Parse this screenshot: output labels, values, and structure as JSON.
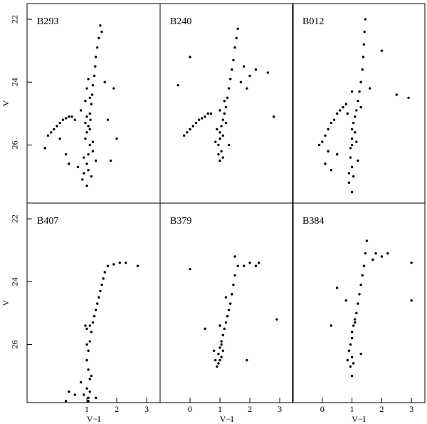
{
  "chart_data": [
    {
      "type": "scatter",
      "title": "B293",
      "color": "#000000",
      "xlim": [
        -1,
        3.45
      ],
      "ylim": [
        27.85,
        21.5
      ],
      "yticks": [
        22,
        24,
        26
      ],
      "ylabel": "V",
      "x": [
        1.45,
        1.5,
        1.4,
        1.35,
        1.3,
        1.28,
        1.25,
        1.2,
        1.18,
        1.15,
        1.1,
        1.12,
        1.05,
        1.0,
        0.95,
        1.1,
        1.2,
        0.9,
        1.0,
        1.05,
        1.15,
        0.85,
        1.0,
        1.1,
        0.95,
        1.3,
        0.8,
        1.0,
        1.2,
        1.05,
        0.9,
        1.1,
        1.0,
        -0.3,
        -0.2,
        -0.1,
        0.0,
        0.1,
        0.2,
        0.3,
        0.4,
        0.5,
        0.6,
        -0.4,
        0.1,
        0.3,
        1.6,
        1.9,
        2.0,
        1.8,
        0.7,
        0.4,
        1.7,
        1.05,
        0.95
      ],
      "values": [
        22.2,
        22.4,
        22.6,
        22.9,
        23.2,
        23.5,
        23.8,
        24.1,
        24.4,
        24.7,
        25.0,
        25.2,
        25.4,
        25.6,
        25.8,
        26.0,
        26.2,
        26.4,
        26.6,
        26.8,
        27.0,
        27.1,
        27.3,
        25.5,
        25.3,
        26.5,
        24.9,
        24.2,
        25.9,
        26.3,
        26.9,
        24.5,
        25.1,
        25.7,
        25.6,
        25.5,
        25.4,
        25.3,
        25.2,
        25.15,
        25.1,
        25.1,
        25.2,
        26.1,
        25.8,
        26.3,
        24.0,
        24.2,
        25.8,
        26.5,
        26.7,
        26.6,
        25.2,
        23.9,
        24.6
      ]
    },
    {
      "type": "scatter",
      "title": "B240",
      "color": "#000000",
      "xlim": [
        -1,
        3.45
      ],
      "ylim": [
        27.85,
        21.5
      ],
      "x": [
        1.6,
        1.55,
        1.5,
        1.45,
        1.4,
        1.35,
        1.3,
        1.25,
        1.2,
        1.15,
        1.1,
        1.05,
        1.0,
        1.0,
        0.95,
        1.05,
        1.1,
        0.9,
        1.0,
        1.15,
        0.85,
        1.0,
        1.2,
        -0.2,
        -0.1,
        0.0,
        0.1,
        0.2,
        0.3,
        0.4,
        0.5,
        0.6,
        0.7,
        1.8,
        2.0,
        2.2,
        2.6,
        1.9,
        0.0,
        -0.4,
        2.8,
        1.7,
        1.3,
        0.95,
        1.1
      ],
      "values": [
        22.3,
        22.6,
        22.9,
        23.3,
        23.6,
        23.9,
        24.2,
        24.5,
        24.8,
        25.0,
        25.2,
        25.4,
        25.6,
        25.8,
        26.0,
        26.2,
        26.4,
        25.5,
        26.5,
        24.6,
        25.9,
        24.9,
        25.3,
        25.7,
        25.6,
        25.5,
        25.4,
        25.3,
        25.2,
        25.15,
        25.1,
        25.0,
        25.0,
        23.5,
        23.8,
        23.6,
        23.7,
        24.2,
        23.2,
        24.1,
        25.1,
        24.0,
        26.0,
        26.3,
        25.7
      ]
    },
    {
      "type": "scatter",
      "title": "B012",
      "color": "#000000",
      "xlim": [
        -1,
        3.45
      ],
      "ylim": [
        27.85,
        21.5
      ],
      "x": [
        1.45,
        1.42,
        1.4,
        1.38,
        1.35,
        1.3,
        1.25,
        1.2,
        1.15,
        1.1,
        1.05,
        1.0,
        1.0,
        0.95,
        0.95,
        1.0,
        1.05,
        0.9,
        1.1,
        0.9,
        1.0,
        1.0,
        -0.1,
        0.0,
        0.1,
        0.2,
        0.3,
        0.4,
        0.5,
        0.6,
        0.7,
        0.8,
        0.2,
        0.1,
        0.5,
        2.0,
        2.5,
        2.9,
        1.6,
        1.3,
        0.3,
        1.15,
        1.2,
        0.85,
        1.0
      ],
      "values": [
        22.0,
        22.4,
        22.8,
        23.2,
        23.6,
        24.0,
        24.3,
        24.6,
        24.9,
        25.1,
        25.3,
        25.5,
        25.8,
        26.1,
        26.4,
        26.7,
        27.0,
        26.9,
        25.6,
        27.2,
        27.5,
        26.0,
        26.0,
        25.9,
        25.7,
        25.5,
        25.3,
        25.2,
        25.0,
        24.9,
        24.8,
        24.7,
        26.2,
        26.6,
        26.3,
        23.0,
        24.4,
        24.5,
        24.2,
        24.8,
        26.8,
        25.9,
        26.5,
        25.0,
        24.3
      ]
    },
    {
      "type": "scatter",
      "title": "B407",
      "color": "#000000",
      "xlim": [
        -1,
        3.45
      ],
      "ylim": [
        27.85,
        21.5
      ],
      "yticks": [
        22,
        24,
        26
      ],
      "ylabel": "V",
      "xticks": [
        1,
        2,
        3
      ],
      "xlabel": "V−I",
      "x": [
        1.7,
        1.6,
        1.55,
        1.5,
        1.45,
        1.4,
        1.35,
        1.3,
        1.25,
        1.2,
        1.15,
        1.1,
        1.05,
        1.0,
        1.05,
        1.1,
        1.0,
        1.05,
        1.1,
        0.95,
        1.0,
        1.05,
        0.9,
        0.6,
        0.4,
        0.3,
        1.3,
        0.8,
        1.15,
        1.9,
        2.1,
        2.3,
        2.7,
        1.0,
        1.1
      ],
      "values": [
        23.5,
        23.7,
        23.9,
        24.1,
        24.3,
        24.5,
        24.7,
        24.9,
        25.1,
        25.3,
        25.6,
        25.9,
        26.2,
        26.5,
        26.8,
        27.1,
        27.4,
        27.7,
        25.4,
        25.4,
        25.5,
        27.8,
        27.6,
        27.6,
        27.5,
        27.8,
        27.7,
        27.2,
        27.0,
        23.45,
        23.4,
        23.4,
        23.5,
        26.0,
        27.5
      ]
    },
    {
      "type": "scatter",
      "title": "B379",
      "color": "#000000",
      "xlim": [
        -1,
        3.45
      ],
      "ylim": [
        27.85,
        21.5
      ],
      "xticks": [
        0,
        1,
        2,
        3
      ],
      "xlabel": "V−I",
      "x": [
        1.6,
        1.5,
        1.45,
        1.4,
        1.35,
        1.3,
        1.25,
        1.2,
        1.15,
        1.1,
        1.05,
        1.0,
        0.95,
        1.0,
        0.9,
        0.95,
        1.05,
        1.1,
        1.0,
        0.85,
        1.8,
        2.0,
        2.2,
        2.3,
        0.0,
        0.5,
        1.9,
        2.9,
        1.2,
        0.8,
        1.05,
        1.5
      ],
      "values": [
        23.5,
        23.8,
        24.1,
        24.4,
        24.7,
        24.9,
        25.1,
        25.3,
        25.5,
        25.7,
        25.9,
        26.1,
        26.3,
        26.5,
        26.7,
        26.6,
        26.4,
        26.2,
        25.4,
        26.5,
        23.5,
        23.4,
        23.5,
        23.4,
        23.6,
        25.5,
        26.5,
        25.2,
        24.5,
        26.2,
        26.0,
        23.2
      ]
    },
    {
      "type": "scatter",
      "title": "B384",
      "color": "#000000",
      "xlim": [
        -1,
        3.45
      ],
      "ylim": [
        27.85,
        21.5
      ],
      "xticks": [
        0,
        1,
        2,
        3
      ],
      "xlabel": "V−I",
      "x": [
        1.5,
        1.45,
        1.4,
        1.35,
        1.3,
        1.25,
        1.2,
        1.15,
        1.1,
        1.05,
        1.0,
        1.0,
        0.95,
        0.9,
        1.0,
        1.05,
        0.95,
        1.1,
        0.85,
        1.0,
        1.8,
        2.0,
        2.2,
        1.7,
        3.0,
        3.0,
        0.3,
        0.5,
        1.3,
        0.8
      ],
      "values": [
        22.7,
        23.1,
        23.5,
        23.8,
        24.1,
        24.4,
        24.7,
        25.0,
        25.2,
        25.4,
        25.6,
        25.8,
        26.0,
        26.2,
        26.4,
        26.6,
        26.7,
        25.3,
        26.5,
        27.0,
        23.1,
        23.2,
        23.1,
        23.3,
        23.4,
        24.6,
        25.4,
        24.2,
        26.3,
        24.6
      ]
    }
  ]
}
